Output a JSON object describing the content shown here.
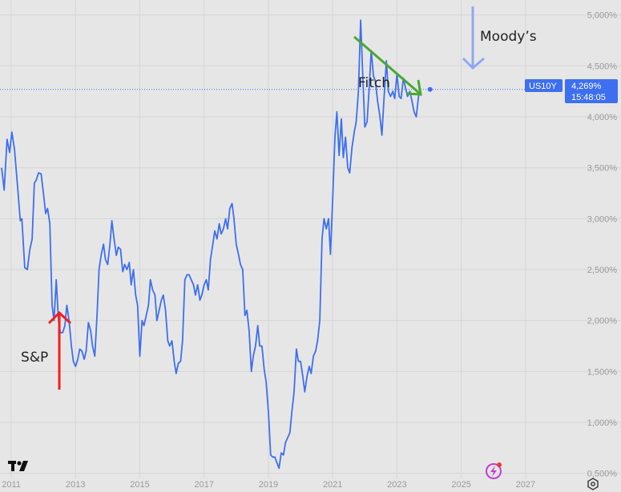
{
  "chart_data": {
    "type": "line",
    "title": "",
    "xlabel": "",
    "ylabel": "",
    "x_range": [
      2010.65,
      2028.15
    ],
    "y_range": [
      0.45,
      5.1
    ],
    "x_ticks": [
      "2011",
      "2013",
      "2015",
      "2017",
      "2019",
      "2021",
      "2023",
      "2025",
      "2027"
    ],
    "x_tick_values": [
      2011,
      2013,
      2015,
      2017,
      2019,
      2021,
      2023,
      2025,
      2027
    ],
    "y_ticks": [
      "0,500%",
      "1,000%",
      "1,500%",
      "2,000%",
      "2,500%",
      "3,000%",
      "3,500%",
      "4,000%",
      "4,500%",
      "5,000%"
    ],
    "y_tick_values": [
      0.5,
      1.0,
      1.5,
      2.0,
      2.5,
      3.0,
      3.5,
      4.0,
      4.5,
      5.0
    ],
    "grid": true,
    "line_color": "#3d6ff0",
    "series": [
      {
        "name": "US10Y",
        "points": [
          [
            2010.7,
            3.5
          ],
          [
            2010.78,
            3.28
          ],
          [
            2010.87,
            3.78
          ],
          [
            2010.95,
            3.65
          ],
          [
            2011.02,
            3.85
          ],
          [
            2011.1,
            3.68
          ],
          [
            2011.2,
            3.3
          ],
          [
            2011.28,
            2.98
          ],
          [
            2011.33,
            3.0
          ],
          [
            2011.42,
            2.52
          ],
          [
            2011.5,
            2.5
          ],
          [
            2011.58,
            2.7
          ],
          [
            2011.65,
            2.8
          ],
          [
            2011.72,
            3.35
          ],
          [
            2011.78,
            3.38
          ],
          [
            2011.85,
            3.45
          ],
          [
            2011.93,
            3.44
          ],
          [
            2012.0,
            3.25
          ],
          [
            2012.07,
            3.05
          ],
          [
            2012.13,
            3.1
          ],
          [
            2012.2,
            2.95
          ],
          [
            2012.27,
            2.15
          ],
          [
            2012.33,
            2.0
          ],
          [
            2012.4,
            2.4
          ],
          [
            2012.47,
            2.0
          ],
          [
            2012.53,
            1.88
          ],
          [
            2012.6,
            1.88
          ],
          [
            2012.67,
            1.95
          ],
          [
            2012.73,
            2.15
          ],
          [
            2012.8,
            2.0
          ],
          [
            2012.87,
            1.75
          ],
          [
            2012.93,
            1.6
          ],
          [
            2013.0,
            1.55
          ],
          [
            2013.07,
            1.62
          ],
          [
            2013.13,
            1.72
          ],
          [
            2013.2,
            1.7
          ],
          [
            2013.27,
            1.62
          ],
          [
            2013.33,
            1.7
          ],
          [
            2013.4,
            1.98
          ],
          [
            2013.47,
            1.9
          ],
          [
            2013.53,
            1.75
          ],
          [
            2013.6,
            1.65
          ],
          [
            2013.67,
            2.05
          ],
          [
            2013.73,
            2.5
          ],
          [
            2013.8,
            2.65
          ],
          [
            2013.87,
            2.75
          ],
          [
            2013.93,
            2.6
          ],
          [
            2014.0,
            2.55
          ],
          [
            2014.07,
            2.75
          ],
          [
            2014.13,
            2.98
          ],
          [
            2014.2,
            2.8
          ],
          [
            2014.27,
            2.64
          ],
          [
            2014.33,
            2.72
          ],
          [
            2014.4,
            2.7
          ],
          [
            2014.47,
            2.48
          ],
          [
            2014.53,
            2.55
          ],
          [
            2014.6,
            2.5
          ],
          [
            2014.67,
            2.57
          ],
          [
            2014.73,
            2.35
          ],
          [
            2014.8,
            2.5
          ],
          [
            2014.87,
            2.25
          ],
          [
            2014.93,
            2.15
          ],
          [
            2015.0,
            1.65
          ],
          [
            2015.07,
            2.0
          ],
          [
            2015.13,
            1.95
          ],
          [
            2015.2,
            2.05
          ],
          [
            2015.27,
            2.15
          ],
          [
            2015.33,
            2.4
          ],
          [
            2015.4,
            2.3
          ],
          [
            2015.47,
            2.25
          ],
          [
            2015.53,
            2.0
          ],
          [
            2015.6,
            2.1
          ],
          [
            2015.67,
            2.2
          ],
          [
            2015.73,
            2.25
          ],
          [
            2015.8,
            2.1
          ],
          [
            2015.87,
            1.8
          ],
          [
            2015.93,
            1.75
          ],
          [
            2016.0,
            1.8
          ],
          [
            2016.07,
            1.6
          ],
          [
            2016.13,
            1.48
          ],
          [
            2016.2,
            1.58
          ],
          [
            2016.27,
            1.6
          ],
          [
            2016.33,
            1.8
          ],
          [
            2016.4,
            2.4
          ],
          [
            2016.47,
            2.45
          ],
          [
            2016.53,
            2.45
          ],
          [
            2016.6,
            2.4
          ],
          [
            2016.67,
            2.35
          ],
          [
            2016.73,
            2.25
          ],
          [
            2016.8,
            2.35
          ],
          [
            2016.87,
            2.2
          ],
          [
            2016.93,
            2.25
          ],
          [
            2017.0,
            2.35
          ],
          [
            2017.07,
            2.4
          ],
          [
            2017.13,
            2.3
          ],
          [
            2017.2,
            2.6
          ],
          [
            2017.27,
            2.75
          ],
          [
            2017.33,
            2.88
          ],
          [
            2017.4,
            2.8
          ],
          [
            2017.47,
            2.95
          ],
          [
            2017.53,
            2.85
          ],
          [
            2017.6,
            2.9
          ],
          [
            2017.67,
            3.0
          ],
          [
            2017.73,
            2.9
          ],
          [
            2017.8,
            3.1
          ],
          [
            2017.87,
            3.15
          ],
          [
            2017.93,
            3.0
          ],
          [
            2018.0,
            2.75
          ],
          [
            2018.07,
            2.65
          ],
          [
            2018.13,
            2.55
          ],
          [
            2018.2,
            2.5
          ],
          [
            2018.27,
            2.05
          ],
          [
            2018.33,
            2.1
          ],
          [
            2018.4,
            1.9
          ],
          [
            2018.47,
            1.5
          ],
          [
            2018.53,
            1.65
          ],
          [
            2018.6,
            1.75
          ],
          [
            2018.67,
            1.95
          ],
          [
            2018.73,
            1.75
          ],
          [
            2018.8,
            1.75
          ],
          [
            2018.87,
            1.52
          ],
          [
            2018.93,
            1.4
          ],
          [
            2019.0,
            1.1
          ],
          [
            2019.07,
            0.68
          ],
          [
            2019.13,
            0.66
          ],
          [
            2019.2,
            0.66
          ],
          [
            2019.27,
            0.6
          ],
          [
            2019.33,
            0.55
          ],
          [
            2019.4,
            0.7
          ],
          [
            2019.47,
            0.68
          ],
          [
            2019.53,
            0.8
          ],
          [
            2019.6,
            0.85
          ],
          [
            2019.67,
            0.9
          ],
          [
            2019.73,
            1.1
          ],
          [
            2019.8,
            1.3
          ],
          [
            2019.87,
            1.72
          ],
          [
            2019.93,
            1.6
          ],
          [
            2020.0,
            1.6
          ],
          [
            2020.07,
            1.45
          ],
          [
            2020.13,
            1.3
          ],
          [
            2020.2,
            1.45
          ],
          [
            2020.27,
            1.55
          ],
          [
            2020.33,
            1.48
          ],
          [
            2020.4,
            1.65
          ],
          [
            2020.47,
            1.7
          ],
          [
            2020.53,
            1.8
          ],
          [
            2020.6,
            2.0
          ],
          [
            2020.67,
            2.8
          ],
          [
            2020.73,
            3.0
          ],
          [
            2020.8,
            2.9
          ],
          [
            2020.87,
            3.0
          ],
          [
            2020.93,
            2.65
          ],
          [
            2021.0,
            3.2
          ],
          [
            2021.07,
            3.8
          ],
          [
            2021.13,
            4.05
          ],
          [
            2021.2,
            3.62
          ],
          [
            2021.27,
            3.98
          ],
          [
            2021.33,
            3.6
          ],
          [
            2021.4,
            3.8
          ],
          [
            2021.47,
            3.5
          ],
          [
            2021.53,
            3.45
          ],
          [
            2021.6,
            3.7
          ],
          [
            2021.67,
            3.85
          ],
          [
            2021.73,
            3.95
          ],
          [
            2021.8,
            4.25
          ],
          [
            2021.87,
            4.95
          ],
          [
            2021.93,
            4.45
          ],
          [
            2022.0,
            3.9
          ],
          [
            2022.07,
            3.95
          ],
          [
            2022.13,
            4.25
          ],
          [
            2022.2,
            4.65
          ],
          [
            2022.27,
            4.4
          ],
          [
            2022.33,
            4.35
          ],
          [
            2022.4,
            4.15
          ],
          [
            2022.47,
            4.0
          ],
          [
            2022.53,
            3.82
          ],
          [
            2022.6,
            4.2
          ],
          [
            2022.67,
            4.55
          ],
          [
            2022.73,
            4.25
          ],
          [
            2022.8,
            4.2
          ],
          [
            2022.87,
            4.25
          ],
          [
            2022.93,
            4.18
          ],
          [
            2023.0,
            4.42
          ],
          [
            2023.07,
            4.2
          ],
          [
            2023.13,
            4.18
          ],
          [
            2023.2,
            4.38
          ],
          [
            2023.27,
            4.28
          ],
          [
            2023.33,
            4.2
          ],
          [
            2023.4,
            4.25
          ],
          [
            2023.47,
            4.15
          ],
          [
            2023.53,
            4.05
          ],
          [
            2023.6,
            4.0
          ],
          [
            2023.67,
            4.2
          ],
          [
            2023.73,
            4.27
          ]
        ]
      }
    ],
    "last_value_badge": {
      "symbol": "US10Y",
      "value": "4,269%",
      "countdown": "15:48:05",
      "level": 4.269
    },
    "annotations": [
      {
        "label": "Moody’s",
        "arrow_color": "#8fa7f3"
      },
      {
        "label": "Fitch",
        "arrow_color": "#4aa830"
      },
      {
        "label": "S&P",
        "arrow_color": "#f02020"
      }
    ]
  },
  "watermark": {
    "logo_icon": "tradingview-logo-icon",
    "lightning_icon": "lightning-badge-icon"
  },
  "settings_icon": "settings-gear-icon"
}
